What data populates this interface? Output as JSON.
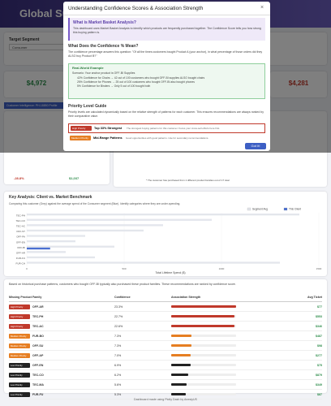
{
  "header": {
    "title": "Global Superstore"
  },
  "sidebar": {
    "label": "Target Segment",
    "select": "Consumer"
  },
  "kpis": [
    {
      "value": "$4,972"
    },
    {
      "value": "$4,281"
    }
  ],
  "intel_bar": "Customer Intelligence: PH-18850 Profile",
  "modal": {
    "title": "Understanding Confidence Scores & Association Strength",
    "what_title": "What is Market Basket Analysis?",
    "what_text": "This dashboard uses Market Basket Analysis to identify which products are frequently purchased together. The Confidence Score tells you how strong this buying pattern is.",
    "mean_title": "What Does the Confidence % Mean?",
    "mean_text": "The confidence percentage answers this question: \"Of all the times customers bought Product A (your anchor), in what percentage of those orders did they ALSO buy Product B?\"",
    "example_title": "Real-World Example",
    "scenario": "Scenario: Your anchor product is OFF-BI Supplies",
    "bullets": [
      "42% Confidence for Chairs → 42 out of 100 customers who bought OFF-BI supplies ALSO bought chairs",
      "25% Confidence for Phones → 25 out of 100 customers who bought OFF-BI also bought phones",
      "5% Confidence for Binders → Only 5 out of 100 bought both"
    ],
    "guide_title": "Priority Level Guide",
    "guide_text": "Priority levels are calculated dynamically based on the relative strength of patterns for each customer. This ensures recommendations are always ranked by their comparative value.",
    "levels": [
      {
        "badge": "High Priority",
        "name": "Top 33% Strongest",
        "text": "The strongest buying patterns for this customer. Focus your cross-sell efforts here first."
      },
      {
        "badge": "Medium Priority",
        "name": "Mid-Range Patterns",
        "text": "Good opportunities with good patterns. Use for secondary recommendations."
      }
    ],
    "button": "Got It!"
  },
  "summary": {
    "change": "-28.8%",
    "amount": "$1,037",
    "note": "* The customer has purchased from 1 different product families out of 17 total"
  },
  "chart_data": {
    "type": "bar",
    "orientation": "horizontal",
    "title": "Key Analysis: Client vs. Market Benchmark",
    "subtitle": "Comparing this customer (Grey) against the average spend of the Consumer segment (Blue). Identify categories where they are under-spending.",
    "x_label": "Total Lifetime Spend ($)",
    "categories": [
      "TEC-PH",
      "TEC-CO",
      "TEC-AC",
      "OFF-ST",
      "OFF-PA",
      "OFF-EN",
      "OFF-BI",
      "OFF-AR",
      "FUR-FU",
      "FUR-CH"
    ],
    "series": [
      {
        "name": "Segment Avg",
        "color": "#e3e6ec",
        "values": [
          1400,
          950,
          700,
          600,
          300,
          250,
          450,
          200,
          350,
          1300
        ]
      },
      {
        "name": "This Client",
        "color": "#4a6fd1",
        "values": [
          0,
          0,
          0,
          0,
          0,
          0,
          120,
          0,
          0,
          0
        ]
      }
    ],
    "xlim": [
      0,
      1500
    ],
    "xticks": [
      0,
      500,
      1000,
      1500
    ],
    "legend": "top-right"
  },
  "recs": {
    "intro": "Based on historical purchase patterns, customers who bought OFF-BI typically also purchased these product families. These recommendations are ranked by confidence score.",
    "headers": [
      "Missing Product Family",
      "Confidence",
      "Association Strength",
      "Avg Ticket"
    ],
    "priorities": [
      "High Priority",
      "High Priority",
      "High Priority",
      "Medium Priority",
      "Medium Priority",
      "Medium Priority",
      "Low Priority",
      "Low Priority",
      "Low Priority",
      "Low Priority"
    ],
    "families": [
      "OFF-AR",
      "TEC-PH",
      "TEC-AC",
      "FUR-BO",
      "OFF-SU",
      "OFF-AP",
      "OFF-EN",
      "TEC-CO",
      "TEC-MA",
      "FUR-FU"
    ],
    "confidence": [
      23.3,
      22.7,
      22.6,
      7.3,
      7.3,
      7.0,
      6.9,
      6.2,
      5.6,
      5.3
    ],
    "confidence_labels": [
      "23.3%",
      "22.7%",
      "22.6%",
      "7.3%",
      "7.3%",
      "7.0%",
      "6.9%",
      "6.2%",
      "5.6%",
      "5.3%"
    ],
    "avg_ticket": [
      "$77",
      "$553",
      "$346",
      "$487",
      "$98",
      "$277",
      "$75",
      "$879",
      "$349",
      "$87"
    ]
  },
  "footer": "Dashboard made using Plotly Dash by AnestyUS"
}
